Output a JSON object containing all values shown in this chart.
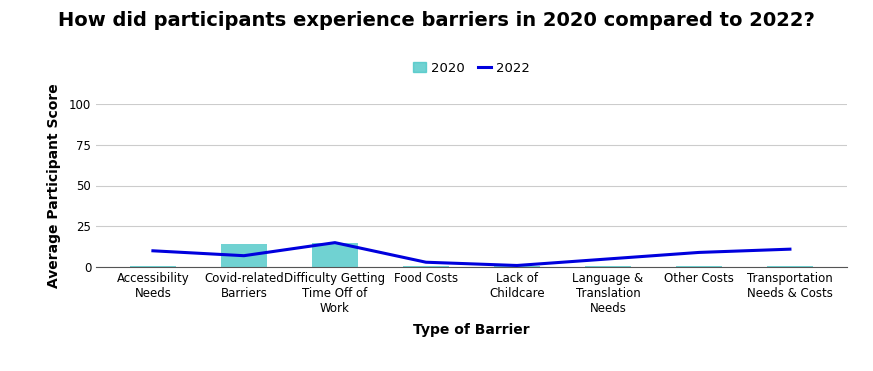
{
  "title": "How did participants experience barriers in 2020 compared to 2022?",
  "xlabel": "Type of Barrier",
  "ylabel": "Average Participant Score",
  "categories": [
    "Accessibility\nNeeds",
    "Covid-related\nBarriers",
    "Difficulty Getting\nTime Off of\nWork",
    "Food Costs",
    "Lack of\nChildcare",
    "Language &\nTranslation\nNeeds",
    "Other Costs",
    "Transportation\nNeeds & Costs"
  ],
  "bar_2020": [
    0.5,
    14.0,
    15.0,
    0.5,
    0.5,
    0.5,
    0.5,
    0.5
  ],
  "line_2022": [
    10.0,
    7.0,
    15.0,
    3.0,
    1.0,
    5.0,
    9.0,
    11.0
  ],
  "bar_color": "#40C4C4",
  "line_color": "#0000DD",
  "bar_alpha": 0.75,
  "ylim": [
    0,
    100
  ],
  "yticks": [
    0,
    25,
    50,
    75,
    100
  ],
  "legend_2020": "2020",
  "legend_2022": "2022",
  "title_fontsize": 14,
  "axis_label_fontsize": 10,
  "tick_fontsize": 8.5,
  "background_color": "#ffffff",
  "grid_color": "#cccccc"
}
